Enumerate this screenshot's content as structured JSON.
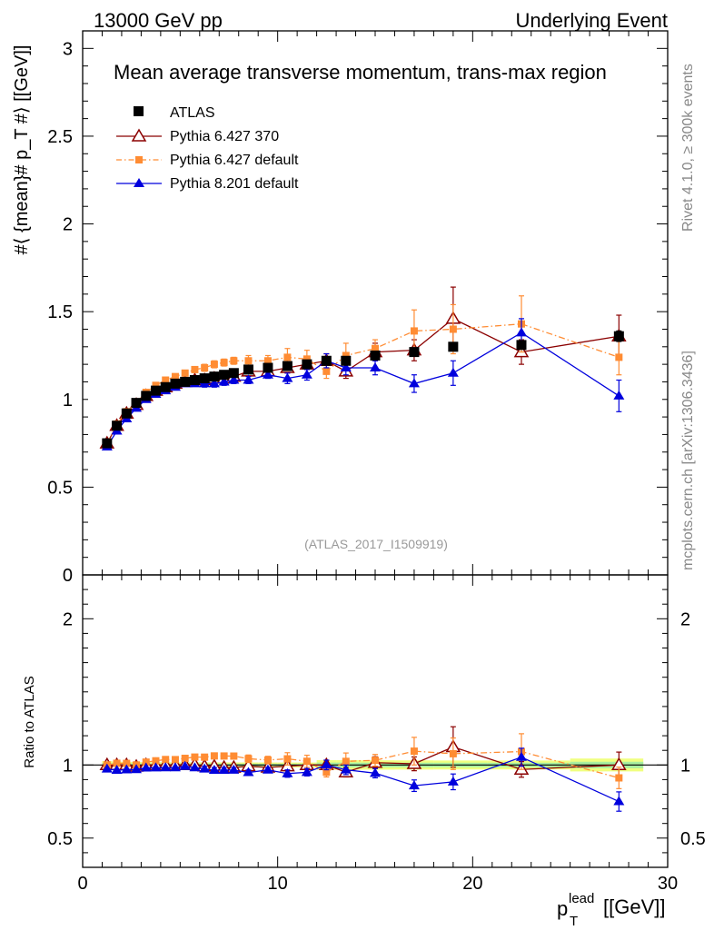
{
  "header": {
    "left": "13000 GeV pp",
    "right": "Underlying Event"
  },
  "side_labels": {
    "rivet": "Rivet 4.1.0, ≥ 300k events",
    "mcplots": "mcplots.cern.ch [arXiv:1306.3436]"
  },
  "chart_data": {
    "type": "scatter",
    "title": "Mean average transverse momentum, trans-max region",
    "analysis_tag": "(ATLAS_2017_I1509919)",
    "xlabel_main": "p",
    "xlabel_sub": "T",
    "xlabel_sup": "lead",
    "xlabel_unit": "[[GeV]]",
    "ylabel": "#⟨ {mean}# p_T #⟩ [[GeV]]",
    "ratio_ylabel": "Ratio to ATLAS",
    "xlim": [
      0,
      30
    ],
    "ylim": [
      0,
      3.1
    ],
    "ratio_ylim": [
      0.3,
      2.3
    ],
    "x_ticks": [
      "0",
      "10",
      "20",
      "30"
    ],
    "y_ticks": [
      "0",
      "0.5",
      "1",
      "1.5",
      "2",
      "2.5",
      "3"
    ],
    "ratio_ticks": [
      "0.5",
      "1",
      "2"
    ],
    "x": [
      1.25,
      1.75,
      2.25,
      2.75,
      3.25,
      3.75,
      4.25,
      4.75,
      5.25,
      5.75,
      6.25,
      6.75,
      7.25,
      7.75,
      8.5,
      9.5,
      10.5,
      11.5,
      12.5,
      13.5,
      15.0,
      17.0,
      19.0,
      22.5,
      27.5
    ],
    "series": [
      {
        "name": "ATLAS",
        "color": "#000000",
        "marker": "square",
        "values": [
          0.75,
          0.85,
          0.92,
          0.98,
          1.02,
          1.05,
          1.07,
          1.09,
          1.1,
          1.11,
          1.12,
          1.13,
          1.14,
          1.15,
          1.17,
          1.18,
          1.19,
          1.2,
          1.22,
          1.22,
          1.25,
          1.27,
          1.3,
          1.31,
          1.36
        ],
        "errors": [
          0.01,
          0.01,
          0.01,
          0.01,
          0.01,
          0.01,
          0.01,
          0.01,
          0.01,
          0.01,
          0.01,
          0.01,
          0.01,
          0.01,
          0.01,
          0.01,
          0.01,
          0.01,
          0.02,
          0.02,
          0.02,
          0.02,
          0.02,
          0.02,
          0.03
        ]
      },
      {
        "name": "Pythia 6.427 370",
        "color": "#8b0000",
        "marker": "triangle-open",
        "line": "solid",
        "values": [
          0.75,
          0.85,
          0.92,
          0.97,
          1.02,
          1.05,
          1.07,
          1.09,
          1.1,
          1.11,
          1.11,
          1.12,
          1.12,
          1.13,
          1.16,
          1.16,
          1.18,
          1.2,
          1.22,
          1.16,
          1.27,
          1.28,
          1.46,
          1.27,
          1.36
        ],
        "errors": [
          0.01,
          0.01,
          0.01,
          0.01,
          0.01,
          0.01,
          0.01,
          0.01,
          0.01,
          0.01,
          0.01,
          0.02,
          0.02,
          0.02,
          0.02,
          0.02,
          0.03,
          0.03,
          0.04,
          0.04,
          0.05,
          0.06,
          0.18,
          0.07,
          0.12
        ]
      },
      {
        "name": "Pythia 6.427 default",
        "color": "#ff8c33",
        "marker": "square",
        "line": "dashdot",
        "values": [
          0.75,
          0.86,
          0.93,
          0.98,
          1.04,
          1.08,
          1.11,
          1.13,
          1.15,
          1.17,
          1.18,
          1.2,
          1.21,
          1.22,
          1.22,
          1.22,
          1.24,
          1.23,
          1.16,
          1.25,
          1.29,
          1.39,
          1.4,
          1.43,
          1.24
        ],
        "errors": [
          0.01,
          0.01,
          0.01,
          0.01,
          0.01,
          0.01,
          0.01,
          0.01,
          0.01,
          0.01,
          0.02,
          0.02,
          0.02,
          0.02,
          0.03,
          0.03,
          0.05,
          0.05,
          0.04,
          0.07,
          0.05,
          0.12,
          0.14,
          0.16,
          0.1
        ]
      },
      {
        "name": "Pythia 8.201 default",
        "color": "#0000dd",
        "marker": "triangle",
        "line": "solid",
        "values": [
          0.73,
          0.82,
          0.89,
          0.95,
          1.0,
          1.03,
          1.05,
          1.07,
          1.09,
          1.09,
          1.09,
          1.09,
          1.1,
          1.11,
          1.11,
          1.14,
          1.12,
          1.14,
          1.22,
          1.18,
          1.18,
          1.09,
          1.15,
          1.38,
          1.02
        ],
        "errors": [
          0.01,
          0.01,
          0.01,
          0.01,
          0.01,
          0.01,
          0.01,
          0.01,
          0.01,
          0.01,
          0.02,
          0.02,
          0.02,
          0.02,
          0.02,
          0.02,
          0.03,
          0.03,
          0.04,
          0.04,
          0.04,
          0.05,
          0.07,
          0.08,
          0.09
        ]
      }
    ]
  }
}
